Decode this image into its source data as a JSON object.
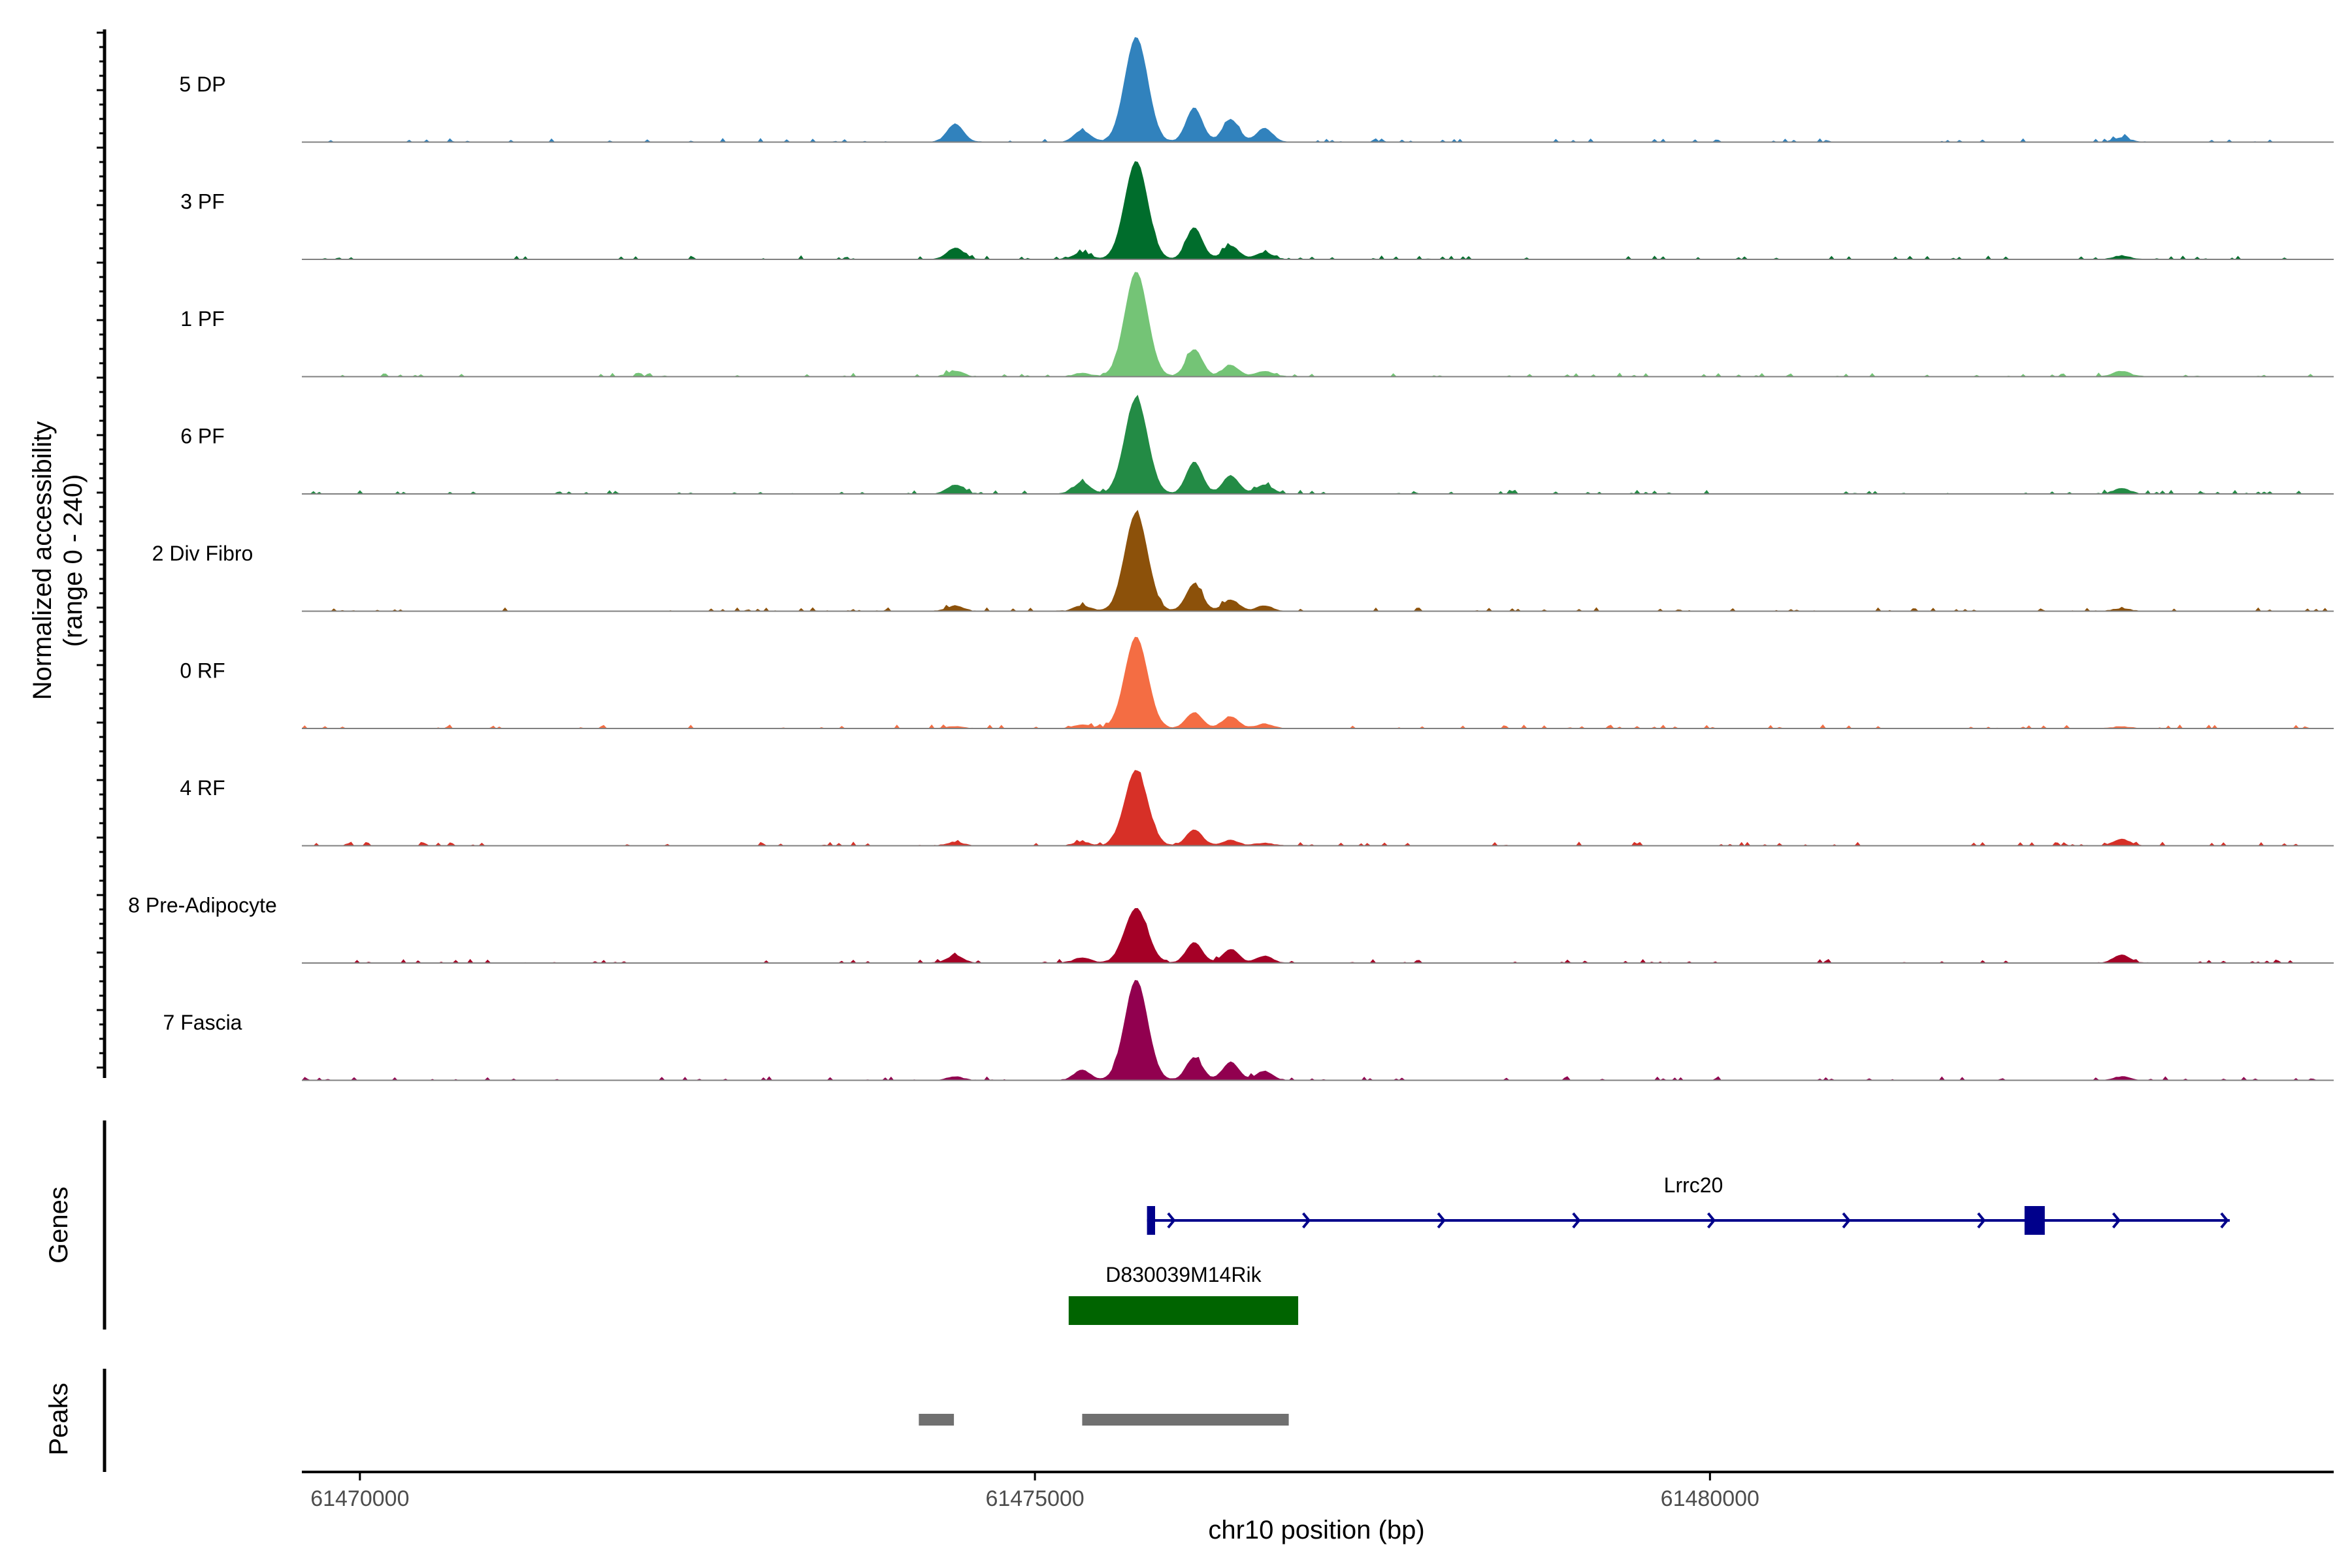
{
  "chart_data": {
    "type": "area",
    "title": "",
    "ylabel_line1": "Normalized accessibility",
    "ylabel_line2": "(range 0 - 240)",
    "xlabel": "chr10 position (bp)",
    "y_range": [
      0,
      240
    ],
    "x_range": [
      61469570,
      61484620
    ],
    "x_ticks": [
      {
        "value": 61470000,
        "label": "61470000"
      },
      {
        "value": 61475000,
        "label": "61475000"
      },
      {
        "value": 61480000,
        "label": "61480000"
      }
    ],
    "peak_centers": [
      61474410,
      61475350,
      61475750,
      61476180,
      61476450,
      61476700,
      61483050
    ],
    "tracks": [
      {
        "name": "5 DP",
        "color": "#3182bd",
        "heights": [
          40,
          25,
          230,
          75,
          50,
          30,
          10
        ]
      },
      {
        "name": "3 PF",
        "color": "#006d2c",
        "heights": [
          25,
          15,
          215,
          70,
          30,
          15,
          8
        ]
      },
      {
        "name": "1 PF",
        "color": "#74c476",
        "heights": [
          12,
          8,
          230,
          60,
          25,
          12,
          12
        ]
      },
      {
        "name": "6 PF",
        "color": "#238b45",
        "heights": [
          20,
          25,
          210,
          70,
          40,
          20,
          12
        ]
      },
      {
        "name": "2 Div Fibro",
        "color": "#8c510a",
        "heights": [
          12,
          12,
          215,
          60,
          25,
          12,
          6
        ]
      },
      {
        "name": "0 RF",
        "color": "#f46d43",
        "heights": [
          4,
          8,
          200,
          35,
          25,
          10,
          4
        ]
      },
      {
        "name": "4 RF",
        "color": "#d73027",
        "heights": [
          8,
          8,
          165,
          35,
          12,
          6,
          14
        ]
      },
      {
        "name": "8 Pre-Adipocyte",
        "color": "#a50026",
        "heights": [
          16,
          12,
          120,
          45,
          30,
          15,
          18
        ]
      },
      {
        "name": "7 Fascia",
        "color": "#91004f",
        "heights": [
          8,
          22,
          220,
          50,
          40,
          20,
          8
        ]
      }
    ],
    "genes_title": "Genes",
    "peaks_title": "Peaks",
    "genes": [
      {
        "name": "Lrrc20",
        "start": 61475830,
        "end": 61483850,
        "color": "#00008b",
        "strand": "+",
        "exons": [
          [
            61475830,
            61475890
          ],
          [
            61482330,
            61482480
          ]
        ]
      },
      {
        "name": "D830039M14Rik",
        "start": 61475250,
        "end": 61476950,
        "color": "#006400",
        "strand": "+",
        "exons": [
          [
            61475250,
            61476950
          ]
        ]
      }
    ],
    "peaks": [
      [
        61474140,
        61474400
      ],
      [
        61475350,
        61476880
      ]
    ]
  }
}
